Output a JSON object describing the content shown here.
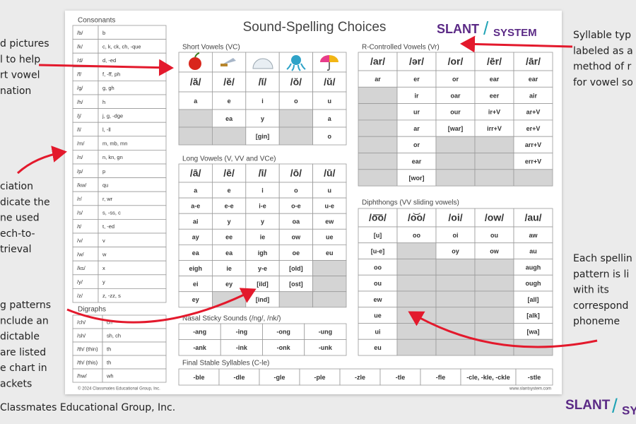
{
  "callouts_left": [
    [
      "d pictures",
      "l to help",
      "rt vowel",
      "nation"
    ],
    [
      "ciation",
      "dicate the",
      "ne used",
      "ech-to-",
      "trieval"
    ],
    [
      "g patterns",
      "nclude an",
      "dictable",
      "are listed",
      "e chart in",
      "ackets"
    ]
  ],
  "callouts_right": [
    [
      "Syllable typ",
      "labeled as a",
      "method of r",
      "for vowel so"
    ],
    [
      "Each spellin",
      "pattern is li",
      "with its",
      "correspond",
      "phoneme"
    ]
  ],
  "footer_left": "Classmates Educational Group, Inc.",
  "corner_logo": {
    "slant": "SLANT",
    "slash": "/",
    "system": "SY"
  },
  "sheet": {
    "title": "Sound-Spelling Choices",
    "logo": {
      "slant": "SLANT",
      "slash": "/",
      "system": "SYSTEM"
    },
    "consonants": {
      "title": "Consonants",
      "rows": [
        [
          "/b/",
          "b"
        ],
        [
          "/k/",
          "c, k, ck, ch, -que"
        ],
        [
          "/d/",
          "d, -ed"
        ],
        [
          "/f/",
          "f, -ff, ph"
        ],
        [
          "/g/",
          "g, gh"
        ],
        [
          "/h/",
          "h"
        ],
        [
          "/j/",
          "j, g, -dge"
        ],
        [
          "/l/",
          "l, -ll"
        ],
        [
          "/m/",
          "m, mb, mn"
        ],
        [
          "/n/",
          "n, kn, gn"
        ],
        [
          "/p/",
          "p"
        ],
        [
          "/kw/",
          "qu"
        ],
        [
          "/r/",
          "r, wr"
        ],
        [
          "/s/",
          "s, -ss, c"
        ],
        [
          "/t/",
          "t, -ed"
        ],
        [
          "/v/",
          "v"
        ],
        [
          "/w/",
          "w"
        ],
        [
          "/ks/",
          "x"
        ],
        [
          "/y/",
          "y"
        ],
        [
          "/z/",
          "z, -zz, s"
        ]
      ]
    },
    "digraphs": {
      "title": "Digraphs",
      "rows": [
        [
          "/ch/",
          "ch"
        ],
        [
          "/sh/",
          "sh, ch"
        ],
        [
          "/th/ (thin)",
          "th"
        ],
        [
          "/th/ (this)",
          "th"
        ],
        [
          "/hw/",
          "wh"
        ]
      ]
    },
    "short_vowels": {
      "title": "Short Vowels (VC)",
      "headers": [
        "/ă/",
        "/ĕ/",
        "/ĭ/",
        "/ŏ/",
        "/ŭ/"
      ],
      "rows": [
        [
          "a",
          "e",
          "i",
          "o",
          "u"
        ],
        [
          null,
          "ea",
          "y",
          null,
          "a"
        ],
        [
          null,
          null,
          "[gin]",
          null,
          "o"
        ]
      ]
    },
    "long_vowels": {
      "title": "Long Vowels (V, VV and VCe)",
      "headers": [
        "/ā/",
        "/ē/",
        "/ī/",
        "/ō/",
        "/ū/"
      ],
      "rows": [
        [
          "a",
          "e",
          "i",
          "o",
          "u"
        ],
        [
          "a-e",
          "e-e",
          "i-e",
          "o-e",
          "u-e"
        ],
        [
          "ai",
          "y",
          "y",
          "oa",
          "ew"
        ],
        [
          "ay",
          "ee",
          "ie",
          "ow",
          "ue"
        ],
        [
          "ea",
          "ea",
          "igh",
          "oe",
          "eu"
        ],
        [
          "eigh",
          "ie",
          "y-e",
          "[old]",
          null
        ],
        [
          "ei",
          "ey",
          "[ild]",
          "[ost]",
          null
        ],
        [
          "ey",
          null,
          "[ind]",
          null,
          null
        ]
      ]
    },
    "nasal": {
      "title": "Nasal Sticky Sounds (/ng/, /nk/)",
      "rows": [
        [
          "-ang",
          "-ing",
          "-ong",
          "-ung"
        ],
        [
          "-ank",
          "-ink",
          "-onk",
          "-unk"
        ]
      ]
    },
    "r_controlled": {
      "title": "R-Controlled Vowels (Vr)",
      "headers": [
        "/ar/",
        "/ər/",
        "/or/",
        "/ēr/",
        "/ār/"
      ],
      "rows": [
        [
          "ar",
          "er",
          "or",
          "ear",
          "ear"
        ],
        [
          null,
          "ir",
          "oar",
          "eer",
          "air"
        ],
        [
          null,
          "ur",
          "our",
          "ir+V",
          "ar+V"
        ],
        [
          null,
          "ar",
          "[war]",
          "irr+V",
          "er+V"
        ],
        [
          null,
          "or",
          null,
          null,
          "arr+V"
        ],
        [
          null,
          "ear",
          null,
          null,
          "err+V"
        ],
        [
          null,
          "[wor]",
          null,
          null,
          null
        ]
      ]
    },
    "diphthongs": {
      "title": "Diphthongs (VV sliding vowels)",
      "headers": [
        "/o͞o/",
        "/o͝o/",
        "/oi/",
        "/ow/",
        "/au/"
      ],
      "rows": [
        [
          "[u]",
          "oo",
          "oi",
          "ou",
          "aw"
        ],
        [
          "[u-e]",
          null,
          "oy",
          "ow",
          "au"
        ],
        [
          "oo",
          null,
          null,
          null,
          "augh"
        ],
        [
          "ou",
          null,
          null,
          null,
          "ough"
        ],
        [
          "ew",
          null,
          null,
          null,
          "[all]"
        ],
        [
          "ue",
          null,
          null,
          null,
          "[alk]"
        ],
        [
          "ui",
          null,
          null,
          null,
          "[wa]"
        ],
        [
          "eu",
          null,
          null,
          null,
          null
        ]
      ]
    },
    "final_stable": {
      "title": "Final Stable Syllables (C-le)",
      "rows": [
        [
          "-ble",
          "-dle",
          "-gle",
          "-ple",
          "-zle",
          "-tle",
          "-fle",
          "-cle, -kle, -ckle",
          "-stle"
        ]
      ]
    },
    "copyright": "© 2024 Classmates Educational Group, Inc.",
    "website": "www.slantsystem.com"
  }
}
